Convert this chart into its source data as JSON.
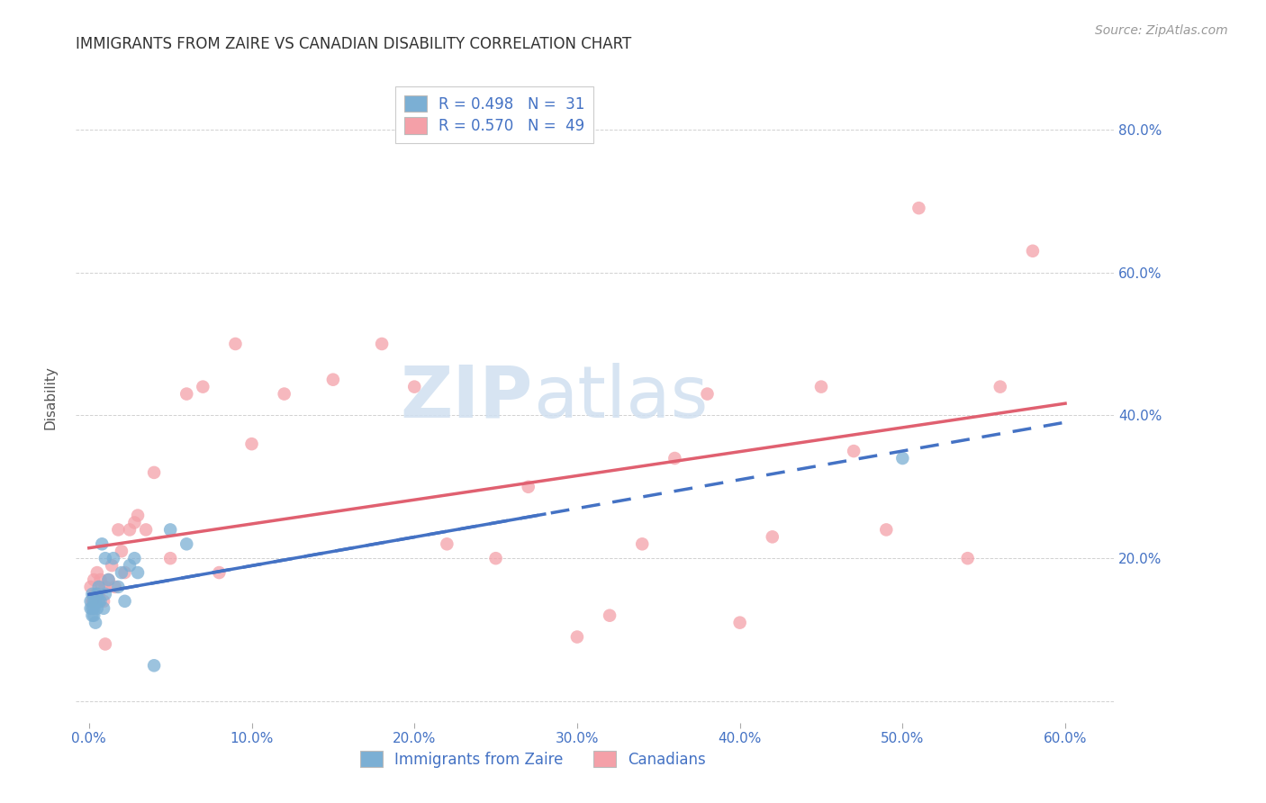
{
  "title": "IMMIGRANTS FROM ZAIRE VS CANADIAN DISABILITY CORRELATION CHART",
  "source": "Source: ZipAtlas.com",
  "ylabel": "Disability",
  "blue_color": "#7bafd4",
  "pink_color": "#f4a0a8",
  "blue_line_color": "#4472c4",
  "pink_line_color": "#e06070",
  "watermark_zip": "ZIP",
  "watermark_atlas": "atlas",
  "legend_r1": "R = 0.498   N =  31",
  "legend_r2": "R = 0.570   N =  49",
  "blue_x": [
    0.001,
    0.001,
    0.002,
    0.002,
    0.002,
    0.003,
    0.003,
    0.003,
    0.004,
    0.004,
    0.005,
    0.005,
    0.006,
    0.006,
    0.007,
    0.008,
    0.009,
    0.01,
    0.01,
    0.012,
    0.015,
    0.018,
    0.02,
    0.022,
    0.025,
    0.028,
    0.03,
    0.04,
    0.05,
    0.06,
    0.5
  ],
  "blue_y": [
    0.13,
    0.14,
    0.12,
    0.13,
    0.15,
    0.12,
    0.14,
    0.13,
    0.11,
    0.14,
    0.15,
    0.13,
    0.14,
    0.16,
    0.14,
    0.22,
    0.13,
    0.15,
    0.2,
    0.17,
    0.2,
    0.16,
    0.18,
    0.14,
    0.19,
    0.2,
    0.18,
    0.05,
    0.24,
    0.22,
    0.34
  ],
  "pink_x": [
    0.001,
    0.002,
    0.003,
    0.004,
    0.005,
    0.006,
    0.007,
    0.008,
    0.009,
    0.01,
    0.012,
    0.014,
    0.016,
    0.018,
    0.02,
    0.022,
    0.025,
    0.028,
    0.03,
    0.035,
    0.04,
    0.05,
    0.06,
    0.07,
    0.08,
    0.09,
    0.1,
    0.12,
    0.15,
    0.18,
    0.2,
    0.22,
    0.25,
    0.27,
    0.3,
    0.32,
    0.34,
    0.36,
    0.38,
    0.4,
    0.42,
    0.45,
    0.47,
    0.49,
    0.51,
    0.54,
    0.56,
    0.58,
    0.01
  ],
  "pink_y": [
    0.16,
    0.14,
    0.17,
    0.15,
    0.18,
    0.15,
    0.17,
    0.16,
    0.14,
    0.16,
    0.17,
    0.19,
    0.16,
    0.24,
    0.21,
    0.18,
    0.24,
    0.25,
    0.26,
    0.24,
    0.32,
    0.2,
    0.43,
    0.44,
    0.18,
    0.5,
    0.36,
    0.43,
    0.45,
    0.5,
    0.44,
    0.22,
    0.2,
    0.3,
    0.09,
    0.12,
    0.22,
    0.34,
    0.43,
    0.11,
    0.23,
    0.44,
    0.35,
    0.24,
    0.69,
    0.2,
    0.44,
    0.63,
    0.08
  ]
}
